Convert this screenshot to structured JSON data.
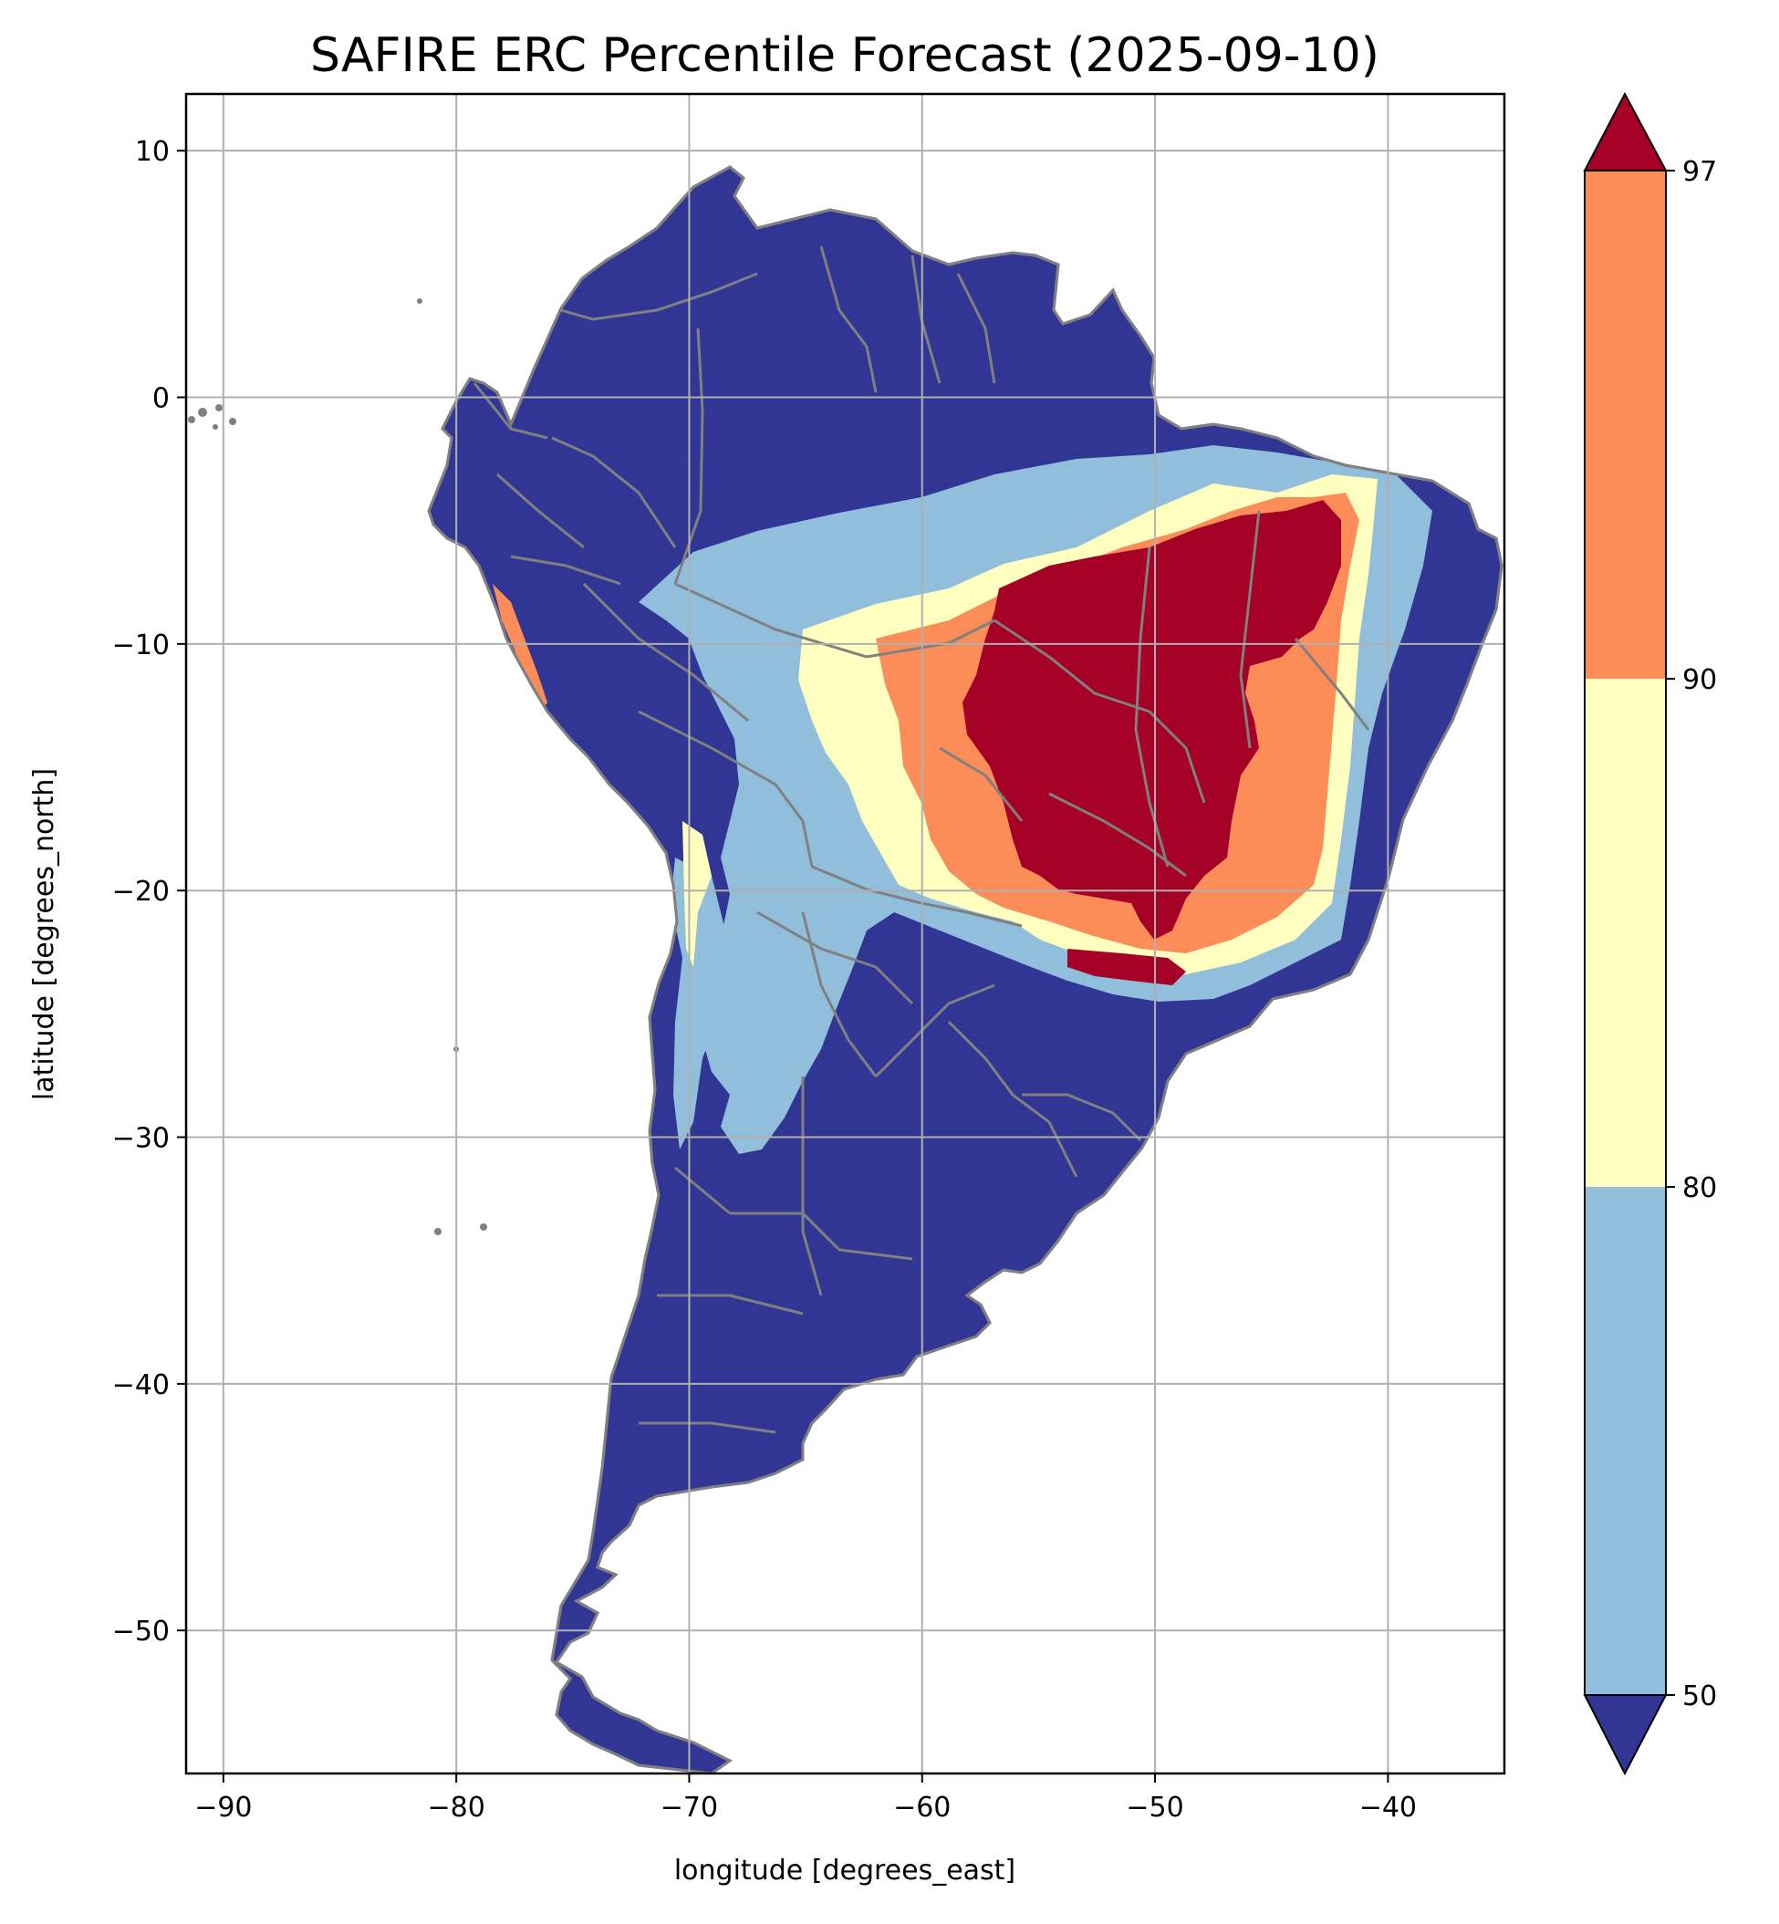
{
  "map": {
    "title": "SAFIRE ERC Percentile Forecast (2025-09-10)",
    "xlabel": "longitude [degrees_east]",
    "ylabel": "latitude [degrees_north]",
    "xlim": [
      -91.6,
      -35.0
    ],
    "ylim": [
      -55.8,
      12.3
    ],
    "x_ticks": [
      -90,
      -80,
      -70,
      -60,
      -50,
      -40
    ],
    "y_ticks": [
      10,
      0,
      -10,
      -20,
      -30,
      -40,
      -50
    ],
    "x_tick_labels": [
      "−90",
      "−80",
      "−70",
      "−60",
      "−50",
      "−40"
    ],
    "y_tick_labels": [
      "10",
      "0",
      "−10",
      "−20",
      "−30",
      "−40",
      "−50"
    ],
    "grid": true,
    "colorbar": {
      "boundaries": [
        50,
        80,
        90,
        97
      ],
      "tick_labels": [
        "50",
        "80",
        "90",
        "97"
      ],
      "extend": "both",
      "colors": {
        "below_50": "#313695",
        "50_80": "#91bfdb",
        "80_90": "#ffffbf",
        "90_97": "#fc8d59",
        "above_97": "#a50026"
      }
    },
    "colors": {
      "boundary_lines": "#808080",
      "grid": "#b0b0b0",
      "ocean": "#ffffff"
    }
  }
}
